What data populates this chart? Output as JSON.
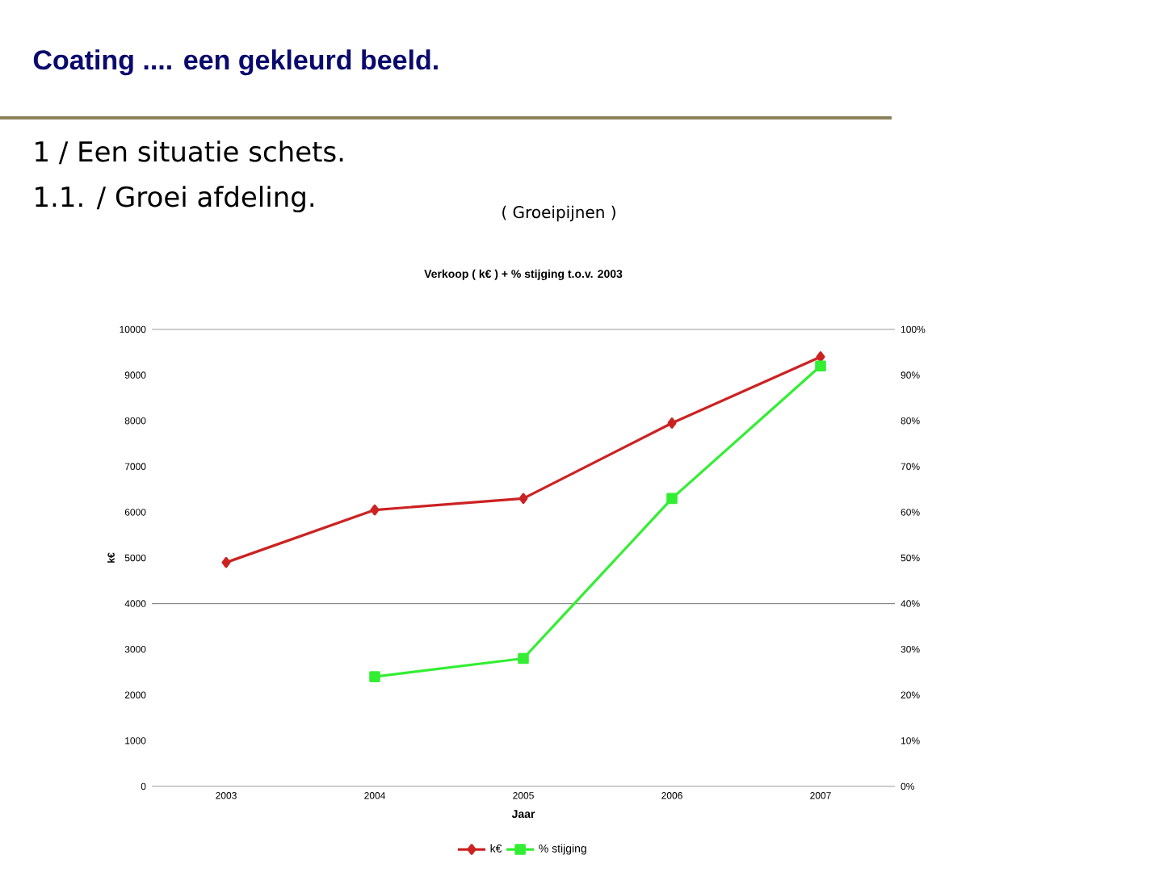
{
  "chart_data": {
    "type": "line",
    "title": "Verkoop ( k€ )  +  % stijging t.o.v. 2003",
    "annotations": [
      "Coating ....  een gekleurd beeld.",
      "1 / Een situatie schets.",
      "1.1. /  Groei afdeling.",
      "( Groeipijnen )"
    ],
    "xlabel": "Jaar",
    "ylabel": "k€",
    "categories": [
      "2003",
      "2004",
      "2005",
      "2006",
      "2007"
    ],
    "series": [
      {
        "name": "k€",
        "color": "#cc2222",
        "marker": "diamond",
        "values": [
          4900,
          6050,
          6300,
          7950,
          9400
        ]
      },
      {
        "name": "% stijging",
        "color": "#33ee33",
        "marker": "square",
        "axis": "y2",
        "values": [
          null,
          24,
          28,
          63,
          92
        ]
      }
    ],
    "ylim": [
      0,
      10000
    ],
    "yticks": [
      0,
      1000,
      2000,
      3000,
      4000,
      5000,
      6000,
      7000,
      8000,
      9000,
      10000
    ],
    "y2lim": [
      0,
      100
    ],
    "y2ticks": [
      {
        "value": 0,
        "label": "0%"
      },
      {
        "value": 10,
        "label": "10%"
      },
      {
        "value": 20,
        "label": "20%"
      },
      {
        "value": 30,
        "label": "30%"
      },
      {
        "value": 40,
        "label": "40%"
      },
      {
        "value": 50,
        "label": "50%"
      },
      {
        "value": 60,
        "label": "60%"
      },
      {
        "value": 70,
        "label": "70%"
      },
      {
        "value": 80,
        "label": "80%"
      },
      {
        "value": 90,
        "label": "90%"
      },
      {
        "value": 100,
        "label": "100%"
      }
    ],
    "ref_lines": [
      {
        "axis": "y",
        "value": 4000,
        "color": "#888888"
      }
    ],
    "legend": "bottom",
    "grid": false,
    "line_style": "solid"
  }
}
